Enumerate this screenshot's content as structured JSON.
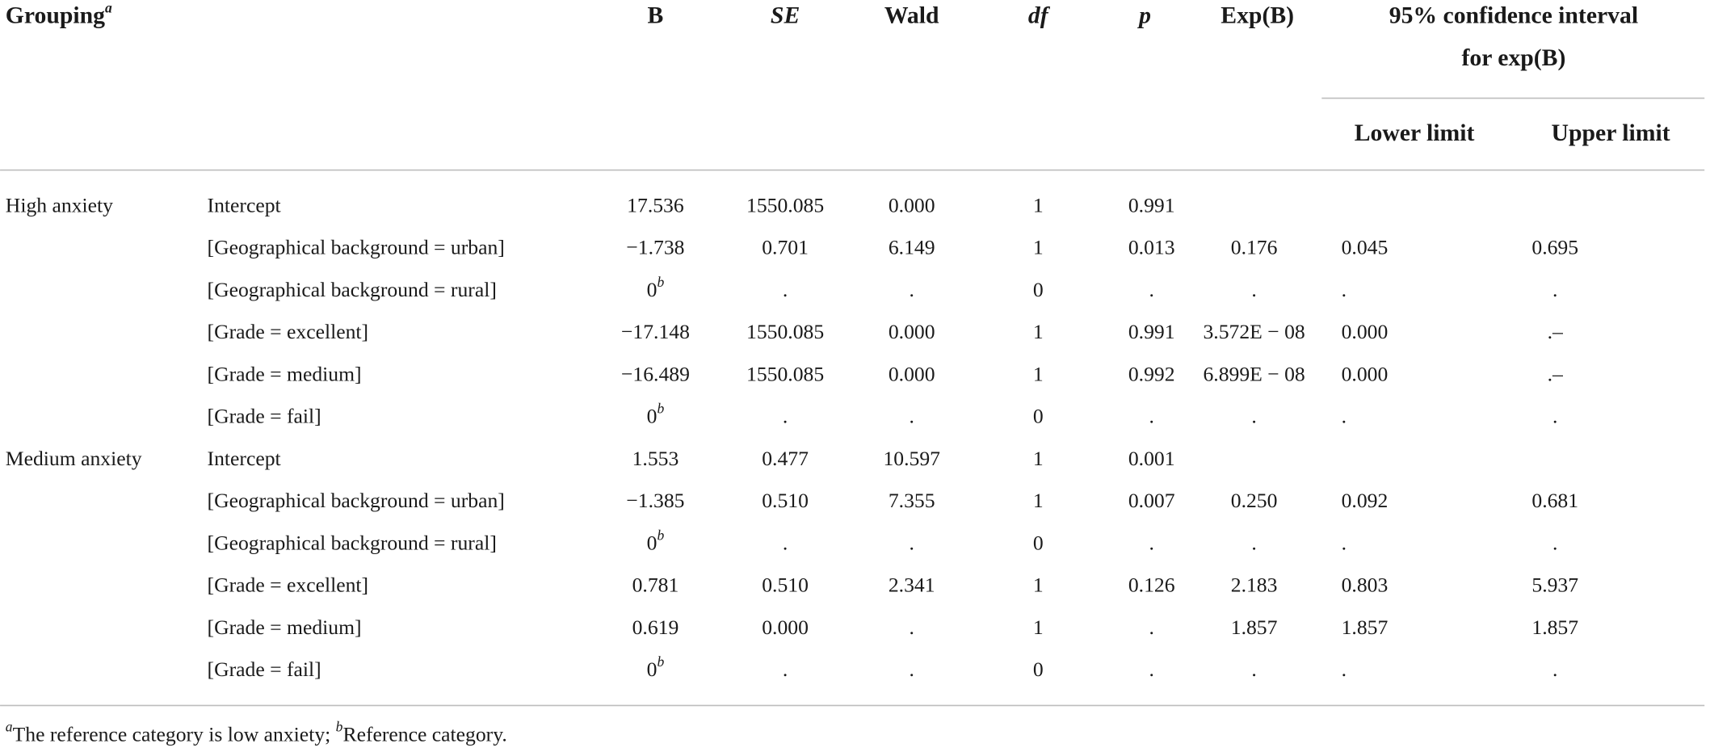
{
  "table": {
    "header": {
      "grouping": {
        "text": "Grouping",
        "sup": "a"
      },
      "columns": [
        "B",
        "SE",
        "Wald",
        "df",
        "p",
        "Exp(B)"
      ],
      "ci_title": [
        "95% confidence interval",
        "for exp(B)"
      ],
      "ci_columns": [
        "Lower limit",
        "Upper limit"
      ]
    },
    "groups": [
      {
        "name": "High anxiety",
        "rows": [
          {
            "label": "Intercept",
            "cells": [
              "17.536",
              "1550.085",
              "0.000",
              "1",
              "0.991"
            ]
          },
          {
            "label": "[Geographical background = urban]",
            "cells": [
              "−1.738",
              "0.701",
              "6.149",
              "1",
              "0.013",
              "0.176",
              "0.045",
              "0.695"
            ]
          },
          {
            "label": "[Geographical background = rural]",
            "cells": [
              {
                "text": "0",
                "sup": "b"
              },
              ".",
              ".",
              "0",
              ".",
              ".",
              ".",
              "."
            ]
          },
          {
            "label": "[Grade = excellent]",
            "cells": [
              "−17.148",
              "1550.085",
              "0.000",
              "1",
              "0.991",
              "3.572E − 08",
              "0.000",
              ".–"
            ]
          },
          {
            "label": "[Grade = medium]",
            "cells": [
              "−16.489",
              "1550.085",
              "0.000",
              "1",
              "0.992",
              "6.899E − 08",
              "0.000",
              ".–"
            ]
          },
          {
            "label": "[Grade = fail]",
            "cells": [
              {
                "text": "0",
                "sup": "b"
              },
              ".",
              ".",
              "0",
              ".",
              ".",
              ".",
              "."
            ]
          }
        ]
      },
      {
        "name": "Medium anxiety",
        "rows": [
          {
            "label": "Intercept",
            "cells": [
              "1.553",
              "0.477",
              "10.597",
              "1",
              "0.001"
            ]
          },
          {
            "label": "[Geographical background = urban]",
            "cells": [
              "−1.385",
              "0.510",
              "7.355",
              "1",
              "0.007",
              "0.250",
              "0.092",
              "0.681"
            ]
          },
          {
            "label": "[Geographical background = rural]",
            "cells": [
              {
                "text": "0",
                "sup": "b"
              },
              ".",
              ".",
              "0",
              ".",
              ".",
              ".",
              "."
            ]
          },
          {
            "label": "[Grade = excellent]",
            "cells": [
              "0.781",
              "0.510",
              "2.341",
              "1",
              "0.126",
              "2.183",
              "0.803",
              "5.937"
            ]
          },
          {
            "label": "[Grade = medium]",
            "cells": [
              "0.619",
              "0.000",
              ".",
              "1",
              ".",
              "1.857",
              "1.857",
              "1.857"
            ]
          },
          {
            "label": "[Grade = fail]",
            "cells": [
              {
                "text": "0",
                "sup": "b"
              },
              ".",
              ".",
              "0",
              ".",
              ".",
              ".",
              "."
            ]
          }
        ]
      }
    ]
  },
  "footnote": [
    {
      "sup": "a",
      "text": "The reference category is low anxiety; "
    },
    {
      "sup": "b",
      "text": "Reference category."
    }
  ]
}
